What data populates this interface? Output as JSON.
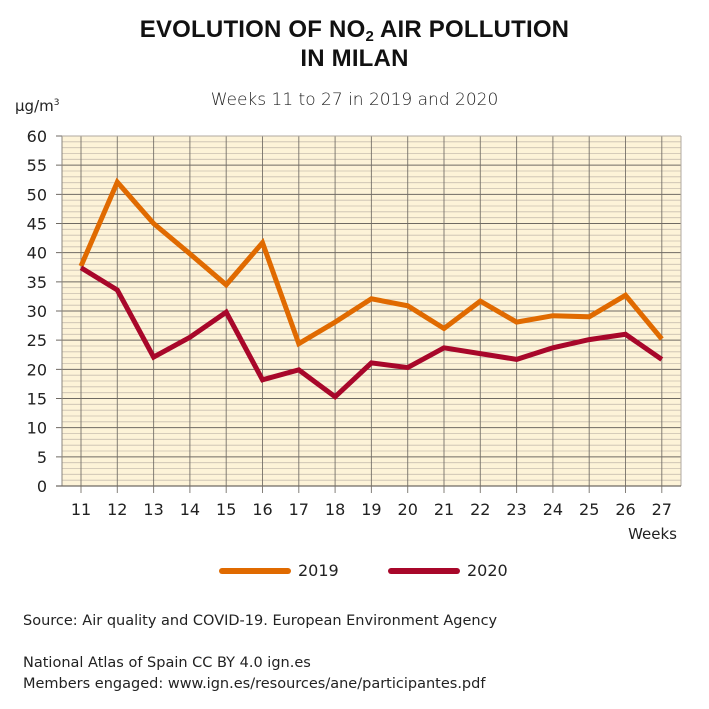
{
  "title": {
    "line1_pre": "EVOLUTION OF NO",
    "line1_sub": "2",
    "line1_post": " AIR POLLUTION",
    "line2": "IN MILAN"
  },
  "subtitle": "Weeks 11 to 27 in 2019 and 2020",
  "unit": {
    "base": "µg/m",
    "sup": "3"
  },
  "colors": {
    "series_2019": "#e06a00",
    "series_2020": "#a8072a",
    "plot_bg": "#fdf3d8",
    "major_grid": "#6f6a63",
    "minor_grid": "#c9bfb0"
  },
  "chart_data": {
    "type": "line",
    "title": "EVOLUTION OF NO2 AIR POLLUTION IN MILAN",
    "subtitle": "Weeks 11 to 27 in 2019 and 2020",
    "xlabel": "Weeks",
    "ylabel": "µg/m3",
    "x": [
      11,
      12,
      13,
      14,
      15,
      16,
      17,
      18,
      19,
      20,
      21,
      22,
      23,
      24,
      25,
      26,
      27
    ],
    "x_tick_labels": [
      "11",
      "12",
      "13",
      "14",
      "15",
      "16",
      "17",
      "18",
      "19",
      "20",
      "21",
      "22",
      "23",
      "24",
      "25",
      "26",
      "27"
    ],
    "y_tick_labels": [
      "0",
      "5",
      "10",
      "15",
      "20",
      "25",
      "30",
      "35",
      "40",
      "45",
      "50",
      "55",
      "60"
    ],
    "ylim": [
      0,
      60
    ],
    "y_major_step": 5,
    "y_minor_step": 1,
    "grid": true,
    "legend_position": "bottom-center",
    "series": [
      {
        "name": "2019",
        "color": "#e06a00",
        "values": [
          37.7,
          52.1,
          45.0,
          39.8,
          34.5,
          41.7,
          24.4,
          28.1,
          32.1,
          30.9,
          27.0,
          31.7,
          28.1,
          29.2,
          29.0,
          32.7,
          25.2
        ]
      },
      {
        "name": "2020",
        "color": "#a8072a",
        "values": [
          37.4,
          33.6,
          22.1,
          25.5,
          29.8,
          18.2,
          19.9,
          15.3,
          21.1,
          20.3,
          23.7,
          22.7,
          21.7,
          23.7,
          25.1,
          26.0,
          21.7
        ]
      }
    ]
  },
  "legend": [
    {
      "label": "2019",
      "color": "#e06a00"
    },
    {
      "label": "2020",
      "color": "#a8072a"
    }
  ],
  "footer": {
    "source": "Source: Air quality and COVID-19. European Environment Agency",
    "atlas": "National Atlas of Spain CC BY 4.0 ign.es",
    "members": "Members engaged: www.ign.es/resources/ane/participantes.pdf"
  }
}
